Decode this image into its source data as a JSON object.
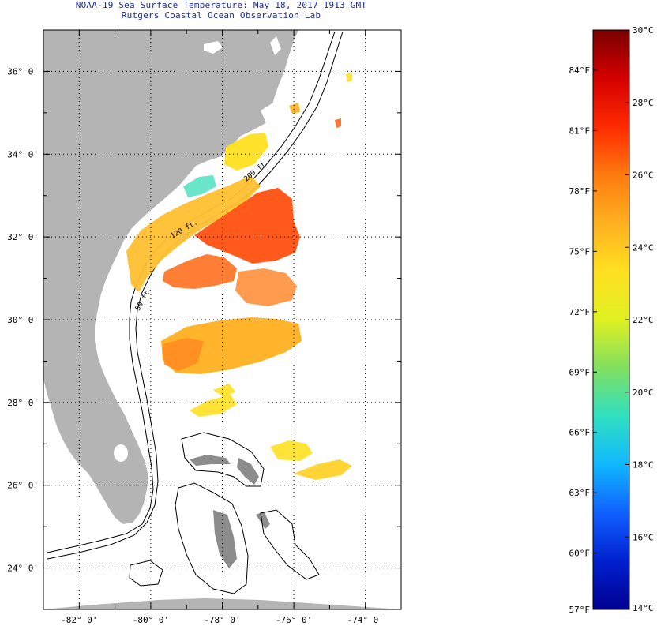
{
  "title": {
    "line1": "NOAA-19 Sea Surface Temperature:  May 18, 2017 1913 GMT",
    "line2": "Rutgers Coastal Ocean Observation Lab"
  },
  "map": {
    "lon_labels": [
      "-82° 0'",
      "-80° 0'",
      "-78° 0'",
      "-76° 0'",
      "-74° 0'"
    ],
    "lat_labels": [
      "36° 0'",
      "34° 0'",
      "32° 0'",
      "30° 0'",
      "28° 0'",
      "26° 0'",
      "24° 0'"
    ],
    "lon_range": [
      -83,
      -73
    ],
    "lat_range": [
      23,
      37
    ],
    "contour_labels": [
      "120 ft.",
      "200 ft",
      "50 ft."
    ],
    "colors": {
      "land": "#b4b4b4",
      "ocean": "#ffffff",
      "frame": "#000000",
      "grid": "#000000"
    }
  },
  "colorbar": {
    "min_c": 14,
    "max_c": 30,
    "celsius_labels": [
      "30°C",
      "28°C",
      "26°C",
      "24°C",
      "22°C",
      "20°C",
      "18°C",
      "16°C",
      "14°C"
    ],
    "fahrenheit_labels": [
      "84°F",
      "81°F",
      "78°F",
      "75°F",
      "72°F",
      "69°F",
      "66°F",
      "63°F",
      "60°F",
      "57°F"
    ],
    "gradient_colors": [
      "#7a0000",
      "#d40000",
      "#ff2a00",
      "#ff7a10",
      "#ffb020",
      "#ffe020",
      "#e0f020",
      "#80e060",
      "#30e0c0",
      "#10b8ff",
      "#1060ff",
      "#0020d0",
      "#000090"
    ]
  }
}
